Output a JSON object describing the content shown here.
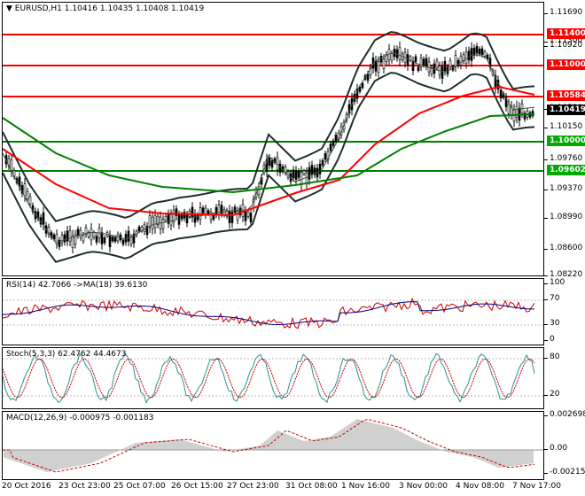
{
  "header": {
    "symbol": "EURUSD,H1",
    "ohlc": "1.10416 1.10435 1.10408 1.10419",
    "arrow_glyph": "▼"
  },
  "main": {
    "price_ticks": [
      "1.11690",
      "1.11300",
      "1.10920",
      "1.10530",
      "1.10150",
      "1.09760",
      "1.09370",
      "1.08990",
      "1.08600",
      "1.08220"
    ],
    "levels": [
      {
        "label": "1.11400",
        "color": "#ff0000"
      },
      {
        "label": "1.11000",
        "color": "#ff0000"
      },
      {
        "label": "1.10584",
        "color": "#ff0000"
      },
      {
        "label": "1.10419",
        "color": "#000000"
      },
      {
        "label": "1.10000",
        "color": "#00aa00"
      },
      {
        "label": "1.09602",
        "color": "#00aa00"
      }
    ]
  },
  "rsi": {
    "title": "RSI(14) 42.7066 ->MA(18) 39.6130",
    "ticks": [
      "100",
      "70",
      "30",
      "0"
    ]
  },
  "stoch": {
    "title": "Stoch(5,3,3) 62.4762 44.4673",
    "ticks": [
      "80",
      "20"
    ]
  },
  "macd": {
    "title": "MACD(12,26,9) -0.000975 -0.001183",
    "ticks": [
      "0.002698",
      "0.00",
      "-0.002157"
    ]
  },
  "xaxis": {
    "labels": [
      "20 Oct 2016",
      "23 Oct 23:00",
      "25 Oct 07:00",
      "26 Oct 15:00",
      "27 Oct 23:00",
      "31 Oct 08:00",
      "1 Nov 16:00",
      "3 Nov 00:00",
      "4 Nov 08:00",
      "7 Nov 17:00"
    ]
  },
  "colors": {
    "red_line": "#ff0000",
    "green_line": "#008000",
    "bands": "#1f2f2f",
    "rsi_line": "#cc0000",
    "rsi_ma": "#000080",
    "stoch_main": "#2f8f8f",
    "stoch_signal": "#cc0000",
    "macd_hist": "#a0a0a0",
    "macd_signal": "#cc0000"
  }
}
